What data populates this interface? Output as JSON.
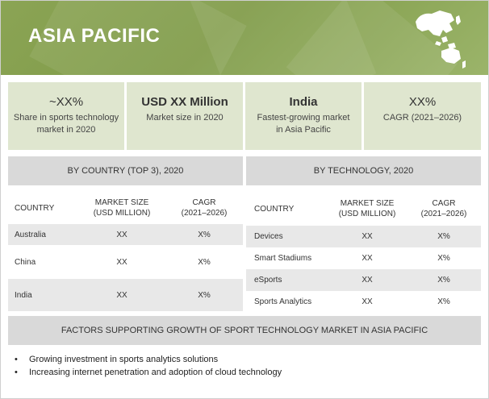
{
  "header": {
    "title": "ASIA PACIFIC"
  },
  "stats": [
    {
      "main": "~XX%",
      "sub_line1": "Share in sports technology",
      "sub_line2": "market in 2020"
    },
    {
      "main": "USD XX Million",
      "sub_line1": "Market size in 2020",
      "sub_line2": ""
    },
    {
      "main": "India",
      "sub_line1": "Fastest-growing market",
      "sub_line2": "in Asia Pacific"
    },
    {
      "main": "XX%",
      "sub_line1": "CAGR (2021–2026)",
      "sub_line2": ""
    }
  ],
  "by_country": {
    "heading": "BY COUNTRY (TOP 3), 2020",
    "columns": {
      "country": "COUNTRY",
      "market_size_l1": "MARKET SIZE",
      "market_size_l2": "(USD MILLION)",
      "cagr_l1": "CAGR",
      "cagr_l2": "(2021–2026)"
    },
    "rows": [
      {
        "name": "Australia",
        "size": "XX",
        "cagr": "X%"
      },
      {
        "name": "China",
        "size": "XX",
        "cagr": "X%"
      },
      {
        "name": "India",
        "size": "XX",
        "cagr": "X%"
      }
    ]
  },
  "by_technology": {
    "heading": "BY TECHNOLOGY, 2020",
    "columns": {
      "country": "COUNTRY",
      "market_size_l1": "MARKET SIZE",
      "market_size_l2": "(USD MILLION)",
      "cagr_l1": "CAGR",
      "cagr_l2": "(2021–2026)"
    },
    "rows": [
      {
        "name": "Devices",
        "size": "XX",
        "cagr": "X%"
      },
      {
        "name": "Smart Stadiums",
        "size": "XX",
        "cagr": "X%"
      },
      {
        "name": "eSports",
        "size": "XX",
        "cagr": "X%"
      },
      {
        "name": "Sports Analytics",
        "size": "XX",
        "cagr": "X%"
      }
    ]
  },
  "factors": {
    "heading": "FACTORS SUPPORTING GROWTH OF SPORT TECHNOLOGY MARKET IN ASIA PACIFIC",
    "items": [
      "Growing investment in sports analytics solutions",
      "Increasing internet penetration and adoption of cloud technology"
    ]
  },
  "icons": {
    "map": "asia-pacific-map-icon",
    "bullet": "bullet-dot-icon"
  },
  "colors": {
    "banner_green": "#7f9b47",
    "stat_box": "#dfe6cf",
    "section_grey": "#d9d9d9",
    "row_shade": "#e8e8e8"
  }
}
